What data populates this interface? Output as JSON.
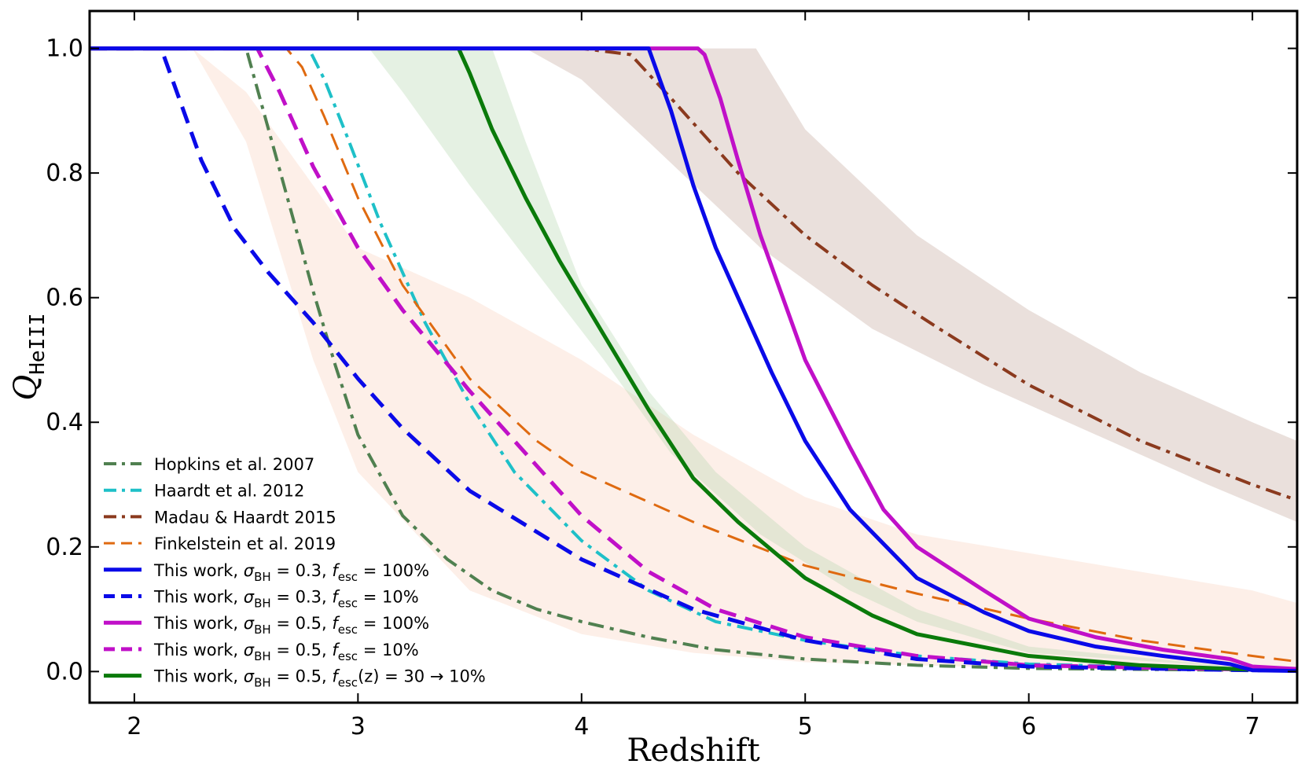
{
  "chart_data": {
    "type": "line",
    "xlabel": "Redshift",
    "ylabel": "Q",
    "ylabel_sub": "HeIII",
    "xlim": [
      1.8,
      7.2
    ],
    "ylim": [
      -0.05,
      1.06
    ],
    "xticks": [
      {
        "value": 2,
        "label": "2"
      },
      {
        "value": 3,
        "label": "3"
      },
      {
        "value": 4,
        "label": "4"
      },
      {
        "value": 5,
        "label": "5"
      },
      {
        "value": 6,
        "label": "6"
      },
      {
        "value": 7,
        "label": "7"
      }
    ],
    "yticks": [
      {
        "value": 0.0,
        "label": "0.0"
      },
      {
        "value": 0.2,
        "label": "0.2"
      },
      {
        "value": 0.4,
        "label": "0.4"
      },
      {
        "value": 0.6,
        "label": "0.6"
      },
      {
        "value": 0.8,
        "label": "0.8"
      },
      {
        "value": 1.0,
        "label": "1.0"
      }
    ],
    "bands": [
      {
        "name": "Finkelstein et al. 2019 range",
        "color": "#fbe0d2",
        "opacity": 0.5,
        "upper": [
          [
            2.26,
            1.0
          ],
          [
            2.5,
            0.93
          ],
          [
            3.0,
            0.68
          ],
          [
            3.5,
            0.6
          ],
          [
            4.0,
            0.5
          ],
          [
            4.5,
            0.38
          ],
          [
            5.0,
            0.28
          ],
          [
            5.5,
            0.22
          ],
          [
            6.0,
            0.19
          ],
          [
            6.5,
            0.16
          ],
          [
            7.0,
            0.13
          ],
          [
            7.2,
            0.11
          ]
        ],
        "lower": [
          [
            2.26,
            1.0
          ],
          [
            2.5,
            0.85
          ],
          [
            2.8,
            0.5
          ],
          [
            3.0,
            0.32
          ],
          [
            3.5,
            0.13
          ],
          [
            4.0,
            0.06
          ],
          [
            4.5,
            0.03
          ],
          [
            5.0,
            0.015
          ],
          [
            5.5,
            0.01
          ],
          [
            6.0,
            0.005
          ],
          [
            7.0,
            0.002
          ],
          [
            7.2,
            0.002
          ]
        ]
      },
      {
        "name": "Madau & Haardt 2015 range",
        "color": "#c9ada2",
        "opacity": 0.38,
        "upper": [
          [
            4.25,
            1.0
          ],
          [
            4.78,
            1.0
          ],
          [
            5.0,
            0.87
          ],
          [
            5.5,
            0.7
          ],
          [
            6.0,
            0.58
          ],
          [
            6.5,
            0.48
          ],
          [
            7.0,
            0.4
          ],
          [
            7.2,
            0.37
          ]
        ],
        "lower": [
          [
            3.75,
            1.0
          ],
          [
            4.0,
            0.95
          ],
          [
            4.3,
            0.85
          ],
          [
            4.8,
            0.68
          ],
          [
            5.3,
            0.55
          ],
          [
            5.8,
            0.46
          ],
          [
            6.3,
            0.38
          ],
          [
            6.8,
            0.3
          ],
          [
            7.2,
            0.24
          ]
        ]
      },
      {
        "name": "This work sigma 0.5 fesc(z) range",
        "color": "#b5d8b0",
        "opacity": 0.35,
        "upper": [
          [
            3.1,
            1.0
          ],
          [
            3.6,
            1.0
          ],
          [
            3.75,
            0.85
          ],
          [
            4.0,
            0.62
          ],
          [
            4.3,
            0.45
          ],
          [
            4.6,
            0.32
          ],
          [
            5.0,
            0.2
          ],
          [
            5.5,
            0.1
          ],
          [
            6.0,
            0.04
          ],
          [
            7.0,
            0.005
          ]
        ],
        "lower": [
          [
            3.05,
            1.0
          ],
          [
            3.2,
            0.93
          ],
          [
            3.5,
            0.78
          ],
          [
            3.8,
            0.64
          ],
          [
            4.1,
            0.5
          ],
          [
            4.4,
            0.35
          ],
          [
            4.8,
            0.22
          ],
          [
            5.2,
            0.13
          ],
          [
            5.5,
            0.08
          ],
          [
            6.0,
            0.03
          ],
          [
            7.0,
            0.005
          ]
        ]
      }
    ],
    "series": [
      {
        "name": "Hopkins et al. 2007",
        "color": "#508050",
        "style": "dashdot",
        "width": 4,
        "points": [
          [
            1.8,
            1.0
          ],
          [
            2.5,
            1.0
          ],
          [
            2.6,
            0.87
          ],
          [
            2.7,
            0.74
          ],
          [
            2.8,
            0.61
          ],
          [
            2.9,
            0.49
          ],
          [
            3.0,
            0.38
          ],
          [
            3.2,
            0.25
          ],
          [
            3.4,
            0.18
          ],
          [
            3.6,
            0.13
          ],
          [
            3.8,
            0.1
          ],
          [
            4.0,
            0.08
          ],
          [
            4.3,
            0.055
          ],
          [
            4.6,
            0.035
          ],
          [
            5.0,
            0.02
          ],
          [
            5.5,
            0.01
          ],
          [
            6.0,
            0.005
          ],
          [
            7.0,
            0.002
          ],
          [
            7.2,
            0.002
          ]
        ]
      },
      {
        "name": "Haardt et al. 2012",
        "color": "#1ec0c8",
        "style": "dashdot",
        "width": 4,
        "points": [
          [
            1.8,
            1.0
          ],
          [
            2.78,
            1.0
          ],
          [
            2.85,
            0.95
          ],
          [
            2.95,
            0.86
          ],
          [
            3.1,
            0.72
          ],
          [
            3.3,
            0.56
          ],
          [
            3.5,
            0.43
          ],
          [
            3.7,
            0.32
          ],
          [
            4.0,
            0.21
          ],
          [
            4.3,
            0.13
          ],
          [
            4.6,
            0.08
          ],
          [
            5.0,
            0.05
          ],
          [
            5.5,
            0.025
          ],
          [
            6.0,
            0.012
          ],
          [
            7.0,
            0.003
          ],
          [
            7.2,
            0.002
          ]
        ]
      },
      {
        "name": "Madau & Haardt 2015",
        "color": "#8b3a1e",
        "style": "dashdot",
        "width": 4,
        "points": [
          [
            1.8,
            1.0
          ],
          [
            4.0,
            1.0
          ],
          [
            4.22,
            0.99
          ],
          [
            4.4,
            0.92
          ],
          [
            4.7,
            0.8
          ],
          [
            5.0,
            0.7
          ],
          [
            5.3,
            0.62
          ],
          [
            5.6,
            0.55
          ],
          [
            6.0,
            0.46
          ],
          [
            6.5,
            0.37
          ],
          [
            7.0,
            0.3
          ],
          [
            7.2,
            0.275
          ]
        ]
      },
      {
        "name": "Finkelstein et al. 2019",
        "color": "#df6a10",
        "style": "dashed",
        "width": 3,
        "points": [
          [
            1.8,
            1.0
          ],
          [
            2.68,
            1.0
          ],
          [
            2.75,
            0.97
          ],
          [
            2.85,
            0.89
          ],
          [
            3.0,
            0.76
          ],
          [
            3.2,
            0.62
          ],
          [
            3.5,
            0.47
          ],
          [
            3.8,
            0.37
          ],
          [
            4.0,
            0.32
          ],
          [
            4.5,
            0.24
          ],
          [
            5.0,
            0.17
          ],
          [
            5.5,
            0.125
          ],
          [
            6.0,
            0.085
          ],
          [
            6.5,
            0.05
          ],
          [
            7.0,
            0.025
          ],
          [
            7.2,
            0.016
          ]
        ]
      },
      {
        "name": "This work, σ_BH = 0.3, f_esc = 100%",
        "color": "#0a0ae8",
        "style": "solid",
        "width": 5,
        "points": [
          [
            1.8,
            1.0
          ],
          [
            4.3,
            1.0
          ],
          [
            4.4,
            0.9
          ],
          [
            4.5,
            0.78
          ],
          [
            4.6,
            0.68
          ],
          [
            4.7,
            0.6
          ],
          [
            4.85,
            0.48
          ],
          [
            5.0,
            0.37
          ],
          [
            5.2,
            0.26
          ],
          [
            5.5,
            0.15
          ],
          [
            5.8,
            0.095
          ],
          [
            6.0,
            0.065
          ],
          [
            6.3,
            0.04
          ],
          [
            6.6,
            0.025
          ],
          [
            6.9,
            0.012
          ],
          [
            7.0,
            0.002
          ],
          [
            7.2,
            0.001
          ]
        ]
      },
      {
        "name": "This work, σ_BH = 0.3, f_esc = 10%",
        "color": "#0a0ae8",
        "style": "dashed",
        "width": 5,
        "points": [
          [
            1.8,
            1.0
          ],
          [
            2.12,
            1.0
          ],
          [
            2.2,
            0.92
          ],
          [
            2.3,
            0.82
          ],
          [
            2.45,
            0.71
          ],
          [
            2.6,
            0.64
          ],
          [
            2.8,
            0.56
          ],
          [
            3.0,
            0.47
          ],
          [
            3.2,
            0.39
          ],
          [
            3.5,
            0.29
          ],
          [
            4.0,
            0.18
          ],
          [
            4.5,
            0.1
          ],
          [
            5.0,
            0.05
          ],
          [
            5.5,
            0.02
          ],
          [
            6.0,
            0.008
          ],
          [
            7.0,
            0.002
          ],
          [
            7.2,
            0.002
          ]
        ]
      },
      {
        "name": "This work, σ_BH = 0.5, f_esc = 100%",
        "color": "#c010c8",
        "style": "solid",
        "width": 5,
        "points": [
          [
            1.8,
            1.0
          ],
          [
            4.52,
            1.0
          ],
          [
            4.55,
            0.99
          ],
          [
            4.62,
            0.92
          ],
          [
            4.7,
            0.82
          ],
          [
            4.8,
            0.7
          ],
          [
            5.0,
            0.5
          ],
          [
            5.2,
            0.36
          ],
          [
            5.35,
            0.26
          ],
          [
            5.5,
            0.2
          ],
          [
            5.8,
            0.13
          ],
          [
            6.0,
            0.085
          ],
          [
            6.3,
            0.055
          ],
          [
            6.6,
            0.035
          ],
          [
            6.9,
            0.02
          ],
          [
            7.0,
            0.008
          ],
          [
            7.2,
            0.004
          ]
        ]
      },
      {
        "name": "This work, σ_BH = 0.5, f_esc = 10%",
        "color": "#c010c8",
        "style": "dashed",
        "width": 5,
        "points": [
          [
            1.8,
            1.0
          ],
          [
            2.55,
            1.0
          ],
          [
            2.65,
            0.93
          ],
          [
            2.8,
            0.81
          ],
          [
            3.0,
            0.68
          ],
          [
            3.2,
            0.58
          ],
          [
            3.5,
            0.45
          ],
          [
            3.8,
            0.33
          ],
          [
            4.0,
            0.25
          ],
          [
            4.3,
            0.16
          ],
          [
            4.6,
            0.1
          ],
          [
            5.0,
            0.055
          ],
          [
            5.5,
            0.025
          ],
          [
            6.0,
            0.01
          ],
          [
            7.0,
            0.003
          ],
          [
            7.2,
            0.002
          ]
        ]
      },
      {
        "name": "This work, σ_BH = 0.5, f_esc(z) = 30 → 10%",
        "color": "#0a7a0a",
        "style": "solid",
        "width": 5,
        "points": [
          [
            1.8,
            1.0
          ],
          [
            3.45,
            1.0
          ],
          [
            3.5,
            0.96
          ],
          [
            3.6,
            0.87
          ],
          [
            3.75,
            0.76
          ],
          [
            3.9,
            0.66
          ],
          [
            4.1,
            0.54
          ],
          [
            4.3,
            0.42
          ],
          [
            4.5,
            0.31
          ],
          [
            4.7,
            0.24
          ],
          [
            5.0,
            0.15
          ],
          [
            5.3,
            0.09
          ],
          [
            5.5,
            0.06
          ],
          [
            6.0,
            0.025
          ],
          [
            6.5,
            0.01
          ],
          [
            7.0,
            0.003
          ],
          [
            7.2,
            0.002
          ]
        ]
      }
    ],
    "legend": {
      "placement": "lower-left",
      "entries": [
        {
          "series": 0,
          "text": "Hopkins et al. 2007"
        },
        {
          "series": 1,
          "text": "Haardt et al. 2012"
        },
        {
          "series": 2,
          "text": "Madau & Haardt 2015"
        },
        {
          "series": 3,
          "text": "Finkelstein et al. 2019"
        },
        {
          "series": 4,
          "text_parts": [
            "This work, ",
            "σ",
            "BH",
            " = 0.3, ",
            "f",
            "esc",
            " = 100%"
          ]
        },
        {
          "series": 5,
          "text_parts": [
            "This work, ",
            "σ",
            "BH",
            " = 0.3, ",
            "f",
            "esc",
            " = 10%"
          ]
        },
        {
          "series": 6,
          "text_parts": [
            "This work, ",
            "σ",
            "BH",
            " = 0.5, ",
            "f",
            "esc",
            " = 100%"
          ]
        },
        {
          "series": 7,
          "text_parts": [
            "This work, ",
            "σ",
            "BH",
            " = 0.5, ",
            "f",
            "esc",
            " = 10%"
          ]
        },
        {
          "series": 8,
          "text_parts": [
            "This work, ",
            "σ",
            "BH",
            " = 0.5, ",
            "f",
            "esc",
            "(z) = 30 →  10%"
          ]
        }
      ]
    }
  }
}
